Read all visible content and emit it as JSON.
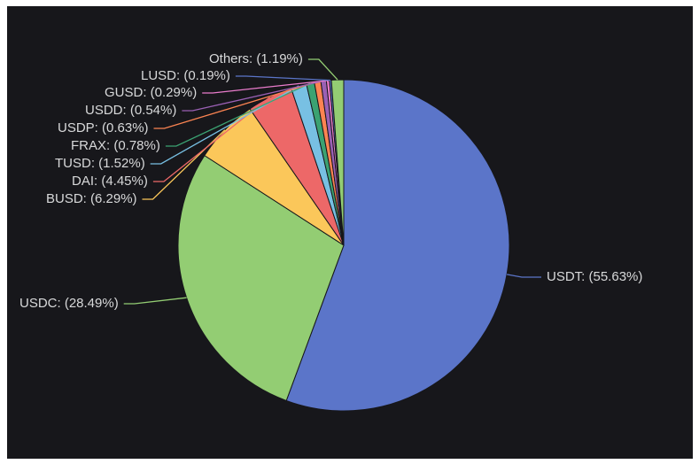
{
  "chart_data": {
    "type": "pie",
    "start_angle": "top (12 o'clock), clockwise",
    "legend": "none",
    "slices": [
      {
        "name": "USDT",
        "value": 55.63,
        "label": "USDT: (55.63%)",
        "color": "#5b75c9"
      },
      {
        "name": "USDC",
        "value": 28.49,
        "label": "USDC: (28.49%)",
        "color": "#93cd73"
      },
      {
        "name": "BUSD",
        "value": 6.29,
        "label": "BUSD: (6.29%)",
        "color": "#fbc75a"
      },
      {
        "name": "DAI",
        "value": 4.45,
        "label": "DAI: (4.45%)",
        "color": "#ed6868"
      },
      {
        "name": "TUSD",
        "value": 1.52,
        "label": "TUSD: (1.52%)",
        "color": "#78c0e3"
      },
      {
        "name": "FRAX",
        "value": 0.78,
        "label": "FRAX: (0.78%)",
        "color": "#3ba272"
      },
      {
        "name": "USDP",
        "value": 0.63,
        "label": "USDP: (0.63%)",
        "color": "#fc8452"
      },
      {
        "name": "USDD",
        "value": 0.54,
        "label": "USDD: (0.54%)",
        "color": "#9a60b4"
      },
      {
        "name": "GUSD",
        "value": 0.29,
        "label": "GUSD: (0.29%)",
        "color": "#ea7ccc"
      },
      {
        "name": "LUSD",
        "value": 0.19,
        "label": "LUSD: (0.19%)",
        "color": "#5b75c9"
      },
      {
        "name": "Others",
        "value": 1.19,
        "label": "Others: (1.19%)",
        "color": "#93cd73"
      }
    ]
  }
}
